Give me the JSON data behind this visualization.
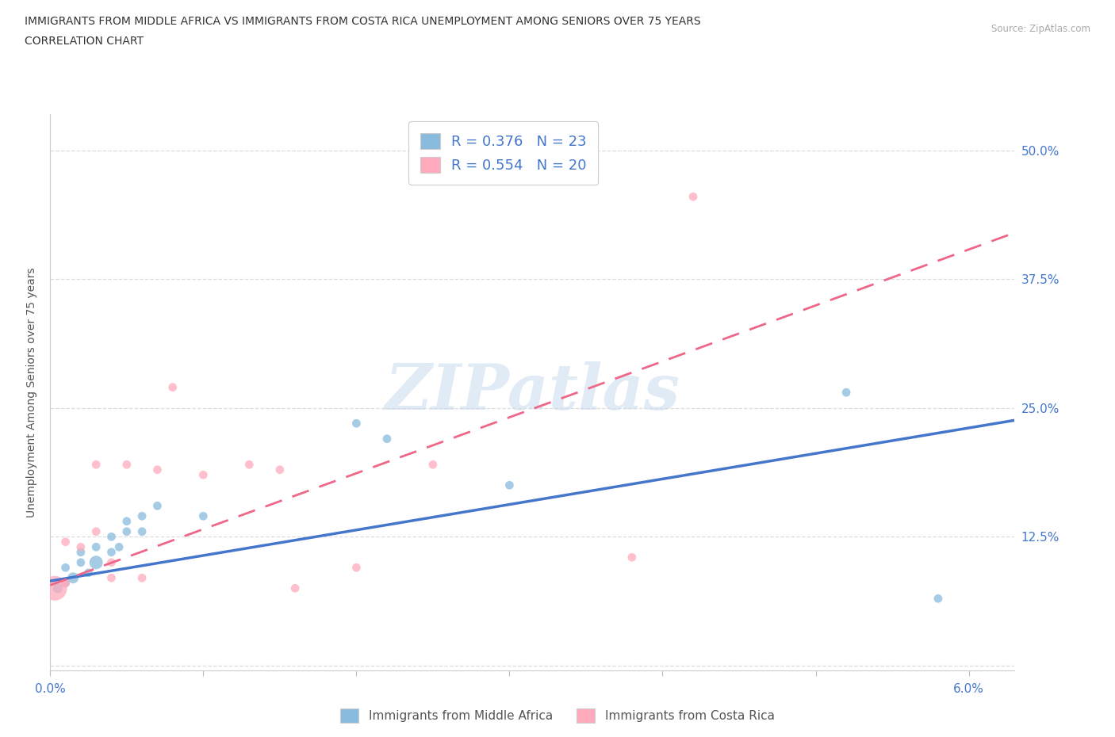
{
  "title_line1": "IMMIGRANTS FROM MIDDLE AFRICA VS IMMIGRANTS FROM COSTA RICA UNEMPLOYMENT AMONG SENIORS OVER 75 YEARS",
  "title_line2": "CORRELATION CHART",
  "source": "Source: ZipAtlas.com",
  "ylabel": "Unemployment Among Seniors over 75 years",
  "ytick_labels": [
    "",
    "12.5%",
    "25.0%",
    "37.5%",
    "50.0%"
  ],
  "ytick_values": [
    0.0,
    0.125,
    0.25,
    0.375,
    0.5
  ],
  "xlim": [
    0.0,
    0.063
  ],
  "ylim": [
    -0.005,
    0.535
  ],
  "blue_color": "#88BBDD",
  "pink_color": "#FFAABD",
  "blue_line_color": "#4477CC",
  "pink_line_color": "#EE6688",
  "blue_R": 0.376,
  "blue_N": 23,
  "pink_R": 0.554,
  "pink_N": 20,
  "blue_series_label": "Immigrants from Middle Africa",
  "pink_series_label": "Immigrants from Costa Rica",
  "blue_x": [
    0.0005,
    0.001,
    0.001,
    0.0015,
    0.002,
    0.002,
    0.0025,
    0.003,
    0.003,
    0.004,
    0.004,
    0.0045,
    0.005,
    0.005,
    0.006,
    0.006,
    0.007,
    0.01,
    0.02,
    0.022,
    0.03,
    0.052,
    0.058
  ],
  "blue_y": [
    0.075,
    0.08,
    0.095,
    0.085,
    0.1,
    0.11,
    0.09,
    0.1,
    0.115,
    0.11,
    0.125,
    0.115,
    0.13,
    0.14,
    0.13,
    0.145,
    0.155,
    0.145,
    0.235,
    0.22,
    0.175,
    0.265,
    0.065
  ],
  "blue_sizes": [
    80,
    60,
    60,
    100,
    60,
    60,
    60,
    150,
    60,
    60,
    60,
    60,
    60,
    60,
    60,
    60,
    60,
    60,
    60,
    60,
    60,
    60,
    60
  ],
  "pink_x": [
    0.0003,
    0.001,
    0.001,
    0.002,
    0.003,
    0.003,
    0.004,
    0.004,
    0.005,
    0.006,
    0.007,
    0.008,
    0.01,
    0.013,
    0.015,
    0.016,
    0.02,
    0.025,
    0.038,
    0.042
  ],
  "pink_y": [
    0.075,
    0.08,
    0.12,
    0.115,
    0.13,
    0.195,
    0.1,
    0.085,
    0.195,
    0.085,
    0.19,
    0.27,
    0.185,
    0.195,
    0.19,
    0.075,
    0.095,
    0.195,
    0.105,
    0.455
  ],
  "pink_sizes": [
    500,
    60,
    60,
    60,
    60,
    60,
    60,
    60,
    60,
    60,
    60,
    60,
    60,
    60,
    60,
    60,
    60,
    60,
    60,
    60
  ],
  "blue_line_x0": 0.0,
  "blue_line_x1": 0.063,
  "blue_line_y0": 0.082,
  "blue_line_y1": 0.238,
  "pink_line_x0": 0.0,
  "pink_line_x1": 0.063,
  "pink_line_y0": 0.078,
  "pink_line_y1": 0.42,
  "watermark": "ZIPatlas",
  "background_color": "#FFFFFF",
  "grid_color": "#DDDDDD"
}
